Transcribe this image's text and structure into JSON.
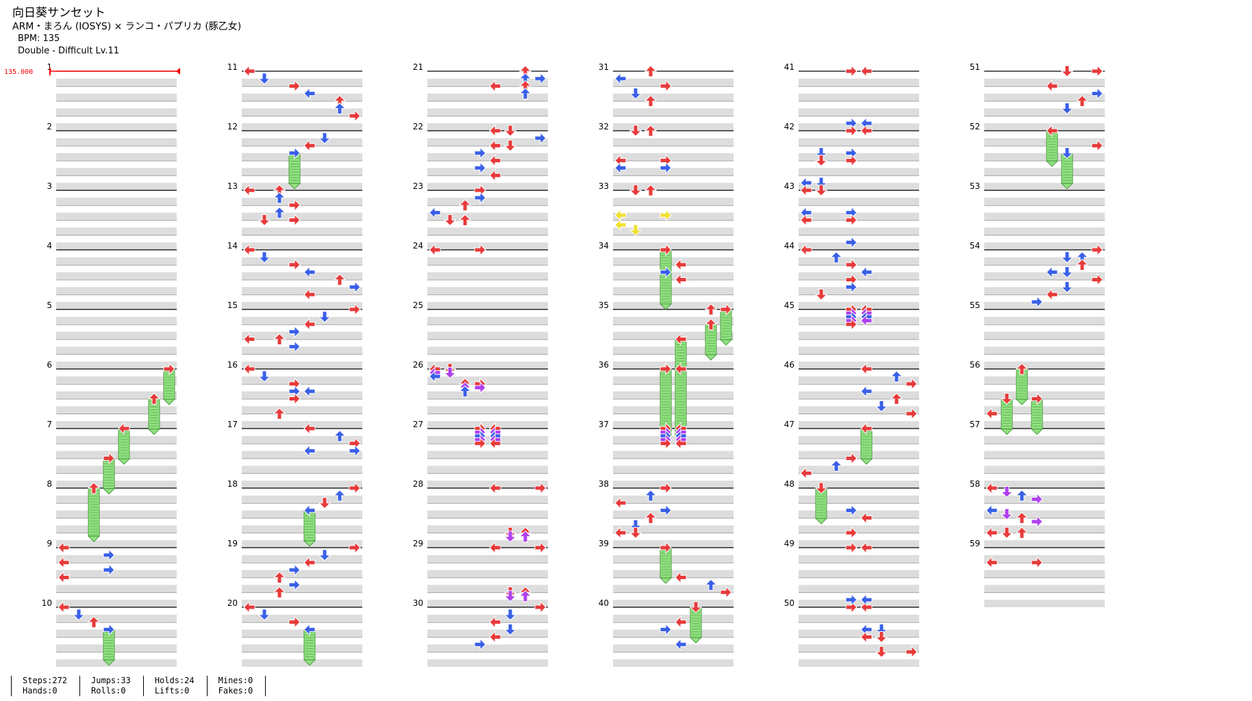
{
  "song": {
    "title": "向日葵サンセット",
    "artist": "ARM・まろん (IOSYS) × ランコ・パプリカ (豚乙女)",
    "bpm_line": "BPM: 135",
    "chart_line": "Double - Difficult  Lv.11"
  },
  "bpm_marker": "135.000",
  "measure_count": 59,
  "measures_per_column": 10,
  "colors": {
    "quarter_note": "#e83a3a",
    "eighth_note": "#3a60e8",
    "sixteenth_note": "#b040f0",
    "twelfth_note": "#f0e030",
    "hold_body": "#90e080",
    "hold_edge": "#4a9a40",
    "beat_band": "#dddddd",
    "bpm_marker": "#ff0000"
  },
  "notes": [
    {
      "m": 6,
      "b": 0,
      "l": 7,
      "h": 0.6
    },
    {
      "m": 6,
      "b": 2,
      "l": 6,
      "h": 0.6
    },
    {
      "m": 7,
      "b": 0,
      "l": 4,
      "h": 0.6
    },
    {
      "m": 7,
      "b": 2,
      "l": 3,
      "h": 0.6
    },
    {
      "m": 8,
      "b": 0,
      "l": 2,
      "h": 0.9
    },
    {
      "m": 9,
      "b": 0,
      "l": 0
    },
    {
      "m": 9,
      "b": 0.5,
      "l": 3
    },
    {
      "m": 9,
      "b": 1,
      "l": 0
    },
    {
      "m": 9,
      "b": 1.5,
      "l": 3
    },
    {
      "m": 9,
      "b": 2,
      "l": 0
    },
    {
      "m": 10,
      "b": 0,
      "l": 0
    },
    {
      "m": 10,
      "b": 0.5,
      "l": 1
    },
    {
      "m": 10,
      "b": 1,
      "l": 2
    },
    {
      "m": 10,
      "b": 1.5,
      "l": 3,
      "h": 0.6
    },
    {
      "m": 11,
      "b": 0,
      "l": 0
    },
    {
      "m": 11,
      "b": 0.5,
      "l": 1
    },
    {
      "m": 11,
      "b": 1,
      "l": 3
    },
    {
      "m": 11,
      "b": 1.5,
      "l": 4
    },
    {
      "m": 11,
      "b": 2,
      "l": 6
    },
    {
      "m": 11,
      "b": 2.5,
      "l": 6
    },
    {
      "m": 11,
      "b": 3,
      "l": 7
    },
    {
      "m": 12,
      "b": 0.5,
      "l": 5
    },
    {
      "m": 12,
      "b": 1,
      "l": 4
    },
    {
      "m": 12,
      "b": 1.5,
      "l": 3,
      "h": 0.6
    },
    {
      "m": 13,
      "b": 0,
      "l": 0
    },
    {
      "m": 13,
      "b": 0,
      "l": 2
    },
    {
      "m": 13,
      "b": 0.5,
      "l": 2
    },
    {
      "m": 13,
      "b": 1,
      "l": 3
    },
    {
      "m": 13,
      "b": 2,
      "l": 1
    },
    {
      "m": 13,
      "b": 1.5,
      "l": 2
    },
    {
      "m": 13,
      "b": 2,
      "l": 3
    },
    {
      "m": 14,
      "b": 0,
      "l": 0
    },
    {
      "m": 14,
      "b": 0.5,
      "l": 1
    },
    {
      "m": 14,
      "b": 1,
      "l": 3
    },
    {
      "m": 14,
      "b": 1.5,
      "l": 4
    },
    {
      "m": 14,
      "b": 2,
      "l": 6
    },
    {
      "m": 14,
      "b": 2.5,
      "l": 7
    },
    {
      "m": 14,
      "b": 3,
      "l": 4
    },
    {
      "m": 15,
      "b": 0,
      "l": 7
    },
    {
      "m": 15,
      "b": 0.5,
      "l": 5
    },
    {
      "m": 15,
      "b": 1,
      "l": 4
    },
    {
      "m": 15,
      "b": 1.5,
      "l": 3
    },
    {
      "m": 15,
      "b": 2,
      "l": 2
    },
    {
      "m": 15,
      "b": 2,
      "l": 0
    },
    {
      "m": 15,
      "b": 2.5,
      "l": 3
    },
    {
      "m": 16,
      "b": 0,
      "l": 0
    },
    {
      "m": 16,
      "b": 0.5,
      "l": 1
    },
    {
      "m": 16,
      "b": 1,
      "l": 3
    },
    {
      "m": 16,
      "b": 1.5,
      "l": 3
    },
    {
      "m": 16,
      "b": 1.5,
      "l": 4
    },
    {
      "m": 16,
      "b": 2,
      "l": 3
    },
    {
      "m": 16,
      "b": 3,
      "l": 2
    },
    {
      "m": 17,
      "b": 0,
      "l": 4
    },
    {
      "m": 17,
      "b": 0.5,
      "l": 6
    },
    {
      "m": 17,
      "b": 1,
      "l": 7
    },
    {
      "m": 17,
      "b": 1.5,
      "l": 4
    },
    {
      "m": 17,
      "b": 1.5,
      "l": 7
    },
    {
      "m": 18,
      "b": 0,
      "l": 7
    },
    {
      "m": 18,
      "b": 0.5,
      "l": 6
    },
    {
      "m": 18,
      "b": 1,
      "l": 5
    },
    {
      "m": 18,
      "b": 1.5,
      "l": 4,
      "h": 0.6
    },
    {
      "m": 19,
      "b": 0,
      "l": 7
    },
    {
      "m": 19,
      "b": 0.5,
      "l": 5
    },
    {
      "m": 19,
      "b": 1,
      "l": 4
    },
    {
      "m": 19,
      "b": 1.5,
      "l": 3
    },
    {
      "m": 19,
      "b": 2,
      "l": 2
    },
    {
      "m": 19,
      "b": 2.5,
      "l": 3
    },
    {
      "m": 19,
      "b": 3,
      "l": 2
    },
    {
      "m": 20,
      "b": 0,
      "l": 0
    },
    {
      "m": 20,
      "b": 0.5,
      "l": 1
    },
    {
      "m": 20,
      "b": 1,
      "l": 3
    },
    {
      "m": 20,
      "b": 1.5,
      "l": 4,
      "h": 0.6
    },
    {
      "m": 21,
      "b": 0,
      "l": 6
    },
    {
      "m": 21,
      "b": 0.5,
      "l": 6
    },
    {
      "m": 21,
      "b": 0.5,
      "l": 7
    },
    {
      "m": 21,
      "b": 1,
      "l": 4
    },
    {
      "m": 21,
      "b": 1,
      "l": 6
    },
    {
      "m": 21,
      "b": 1.5,
      "l": 6
    },
    {
      "m": 22,
      "b": 0,
      "l": 4
    },
    {
      "m": 22,
      "b": 0,
      "l": 5
    },
    {
      "m": 22,
      "b": 0.5,
      "l": 7
    },
    {
      "m": 22,
      "b": 1,
      "l": 5
    },
    {
      "m": 22,
      "b": 1,
      "l": 4
    },
    {
      "m": 22,
      "b": 1.5,
      "l": 3
    },
    {
      "m": 22,
      "b": 2,
      "l": 4
    },
    {
      "m": 22,
      "b": 2.5,
      "l": 3
    },
    {
      "m": 22,
      "b": 3,
      "l": 4
    },
    {
      "m": 23,
      "b": 0,
      "l": 3
    },
    {
      "m": 23,
      "b": 0.5,
      "l": 3
    },
    {
      "m": 23,
      "b": 1,
      "l": 2
    },
    {
      "m": 23,
      "b": 1.5,
      "l": 0
    },
    {
      "m": 23,
      "b": 2,
      "l": 1
    },
    {
      "m": 23,
      "b": 2,
      "l": 2
    },
    {
      "m": 24,
      "b": 0,
      "l": 0
    },
    {
      "m": 24,
      "b": 0,
      "l": 3
    },
    {
      "m": 26,
      "b": 0,
      "l": 0
    },
    {
      "m": 26,
      "b": 0,
      "l": 1
    },
    {
      "m": 26,
      "b": 0.25,
      "l": 0
    },
    {
      "m": 26,
      "b": 0.25,
      "l": 1
    },
    {
      "m": 26,
      "b": 0.5,
      "l": 0
    },
    {
      "m": 26,
      "b": 1,
      "l": 2
    },
    {
      "m": 26,
      "b": 1,
      "l": 3
    },
    {
      "m": 26,
      "b": 1.25,
      "l": 2
    },
    {
      "m": 26,
      "b": 1.25,
      "l": 3
    },
    {
      "m": 26,
      "b": 1.5,
      "l": 2
    },
    {
      "m": 27,
      "b": 0,
      "l": 3
    },
    {
      "m": 27,
      "b": 0,
      "l": 4
    },
    {
      "m": 27,
      "b": 0.25,
      "l": 3
    },
    {
      "m": 27,
      "b": 0.25,
      "l": 4
    },
    {
      "m": 27,
      "b": 0.5,
      "l": 3
    },
    {
      "m": 27,
      "b": 0.5,
      "l": 4
    },
    {
      "m": 27,
      "b": 0.75,
      "l": 3
    },
    {
      "m": 27,
      "b": 0.75,
      "l": 4
    },
    {
      "m": 27,
      "b": 1,
      "l": 3
    },
    {
      "m": 27,
      "b": 1,
      "l": 4
    },
    {
      "m": 28,
      "b": 0,
      "l": 4
    },
    {
      "m": 28,
      "b": 0,
      "l": 7
    },
    {
      "m": 29,
      "b": -1,
      "l": 5
    },
    {
      "m": 29,
      "b": -1,
      "l": 6
    },
    {
      "m": 29,
      "b": -0.75,
      "l": 5
    },
    {
      "m": 29,
      "b": -0.75,
      "l": 6
    },
    {
      "m": 29,
      "b": 0,
      "l": 4
    },
    {
      "m": 29,
      "b": 0,
      "l": 7
    },
    {
      "m": 30,
      "b": -1,
      "l": 5
    },
    {
      "m": 30,
      "b": -1,
      "l": 6
    },
    {
      "m": 30,
      "b": -0.75,
      "l": 5
    },
    {
      "m": 30,
      "b": -0.75,
      "l": 6
    },
    {
      "m": 30,
      "b": 0,
      "l": 7
    },
    {
      "m": 30,
      "b": 0.5,
      "l": 5
    },
    {
      "m": 30,
      "b": 1,
      "l": 4
    },
    {
      "m": 30,
      "b": 1.5,
      "l": 5
    },
    {
      "m": 30,
      "b": 2,
      "l": 4
    },
    {
      "m": 30,
      "b": 2.5,
      "l": 3
    },
    {
      "m": 31,
      "b": 0,
      "l": 2
    },
    {
      "m": 31,
      "b": 0.5,
      "l": 0
    },
    {
      "m": 31,
      "b": 1,
      "l": 3
    },
    {
      "m": 31,
      "b": 1.5,
      "l": 1
    },
    {
      "m": 31,
      "b": 2,
      "l": 2
    },
    {
      "m": 32,
      "b": 0,
      "l": 1
    },
    {
      "m": 32,
      "b": 0,
      "l": 2
    },
    {
      "m": 32,
      "b": 2,
      "l": 0
    },
    {
      "m": 32,
      "b": 2,
      "l": 3
    },
    {
      "m": 32,
      "b": 2.5,
      "l": 0
    },
    {
      "m": 32,
      "b": 2.5,
      "l": 3
    },
    {
      "m": 33,
      "b": 0,
      "l": 1
    },
    {
      "m": 33,
      "b": 0,
      "l": 2
    },
    {
      "m": 33,
      "b": 1.67,
      "l": 0
    },
    {
      "m": 33,
      "b": 1.67,
      "l": 3
    },
    {
      "m": 33,
      "b": 2.33,
      "l": 0
    },
    {
      "m": 33,
      "b": 2.67,
      "l": 1
    },
    {
      "m": 34,
      "b": 0,
      "l": 3,
      "h": 1.0
    },
    {
      "m": 34,
      "b": 1.5,
      "l": 3
    },
    {
      "m": 34,
      "b": 2,
      "l": 4
    },
    {
      "m": 34,
      "b": 1,
      "l": 4
    },
    {
      "m": 35,
      "b": 0,
      "l": 7,
      "h": 0.6
    },
    {
      "m": 35,
      "b": 0,
      "l": 6
    },
    {
      "m": 35,
      "b": 1,
      "l": 6,
      "h": 0.6
    },
    {
      "m": 35,
      "b": 2,
      "l": 4,
      "h": 0.6
    },
    {
      "m": 36,
      "b": 0,
      "l": 3,
      "h": 1.2
    },
    {
      "m": 36,
      "b": 0,
      "l": 4,
      "h": 1.2
    },
    {
      "m": 37,
      "b": 0,
      "l": 3
    },
    {
      "m": 37,
      "b": 0,
      "l": 4
    },
    {
      "m": 37,
      "b": 0.25,
      "l": 3
    },
    {
      "m": 37,
      "b": 0.25,
      "l": 4
    },
    {
      "m": 37,
      "b": 0.5,
      "l": 3
    },
    {
      "m": 37,
      "b": 0.5,
      "l": 4
    },
    {
      "m": 37,
      "b": 0.75,
      "l": 3
    },
    {
      "m": 37,
      "b": 0.75,
      "l": 4
    },
    {
      "m": 37,
      "b": 1,
      "l": 3
    },
    {
      "m": 37,
      "b": 1,
      "l": 4
    },
    {
      "m": 38,
      "b": 0,
      "l": 3
    },
    {
      "m": 38,
      "b": 0.5,
      "l": 2
    },
    {
      "m": 38,
      "b": 1,
      "l": 0
    },
    {
      "m": 38,
      "b": 1.5,
      "l": 3
    },
    {
      "m": 38,
      "b": 2,
      "l": 2
    },
    {
      "m": 38,
      "b": 2.5,
      "l": 1
    },
    {
      "m": 38,
      "b": 3,
      "l": 0
    },
    {
      "m": 38,
      "b": 3,
      "l": 1
    },
    {
      "m": 39,
      "b": 0,
      "l": 3,
      "h": 0.6
    },
    {
      "m": 39,
      "b": 2,
      "l": 4
    },
    {
      "m": 39,
      "b": 2.5,
      "l": 6
    },
    {
      "m": 39,
      "b": 3,
      "l": 7
    },
    {
      "m": 40,
      "b": 0,
      "l": 5,
      "h": 0.6
    },
    {
      "m": 40,
      "b": 1,
      "l": 4
    },
    {
      "m": 40,
      "b": 1.5,
      "l": 3
    },
    {
      "m": 40,
      "b": 2.5,
      "l": 4
    },
    {
      "m": 41,
      "b": 0,
      "l": 3
    },
    {
      "m": 41,
      "b": 0,
      "l": 4
    },
    {
      "m": 42,
      "b": -0.5,
      "l": 3
    },
    {
      "m": 42,
      "b": -0.5,
      "l": 4
    },
    {
      "m": 42,
      "b": 0,
      "l": 3
    },
    {
      "m": 42,
      "b": 0,
      "l": 4
    },
    {
      "m": 42,
      "b": 1.5,
      "l": 1
    },
    {
      "m": 42,
      "b": 1.5,
      "l": 3
    },
    {
      "m": 42,
      "b": 2,
      "l": 1
    },
    {
      "m": 42,
      "b": 2,
      "l": 3
    },
    {
      "m": 43,
      "b": -0.5,
      "l": 0
    },
    {
      "m": 43,
      "b": -0.5,
      "l": 1
    },
    {
      "m": 43,
      "b": 0,
      "l": 0
    },
    {
      "m": 43,
      "b": 0,
      "l": 1
    },
    {
      "m": 43,
      "b": 1.5,
      "l": 0
    },
    {
      "m": 43,
      "b": 1.5,
      "l": 3
    },
    {
      "m": 43,
      "b": 2,
      "l": 0
    },
    {
      "m": 43,
      "b": 2,
      "l": 3
    },
    {
      "m": 44,
      "b": -0.5,
      "l": 3
    },
    {
      "m": 44,
      "b": 0,
      "l": 0
    },
    {
      "m": 44,
      "b": 0.5,
      "l": 2
    },
    {
      "m": 44,
      "b": 1,
      "l": 3
    },
    {
      "m": 44,
      "b": 1.5,
      "l": 4
    },
    {
      "m": 44,
      "b": 2,
      "l": 3
    },
    {
      "m": 44,
      "b": 3,
      "l": 1
    },
    {
      "m": 44,
      "b": 2.5,
      "l": 3
    },
    {
      "m": 45,
      "b": 0,
      "l": 3
    },
    {
      "m": 45,
      "b": 0,
      "l": 4
    },
    {
      "m": 45,
      "b": 0.25,
      "l": 3
    },
    {
      "m": 45,
      "b": 0.25,
      "l": 4
    },
    {
      "m": 45,
      "b": 0.5,
      "l": 3
    },
    {
      "m": 45,
      "b": 0.5,
      "l": 4
    },
    {
      "m": 45,
      "b": 0.75,
      "l": 3
    },
    {
      "m": 45,
      "b": 0.75,
      "l": 4
    },
    {
      "m": 45,
      "b": 1,
      "l": 3
    },
    {
      "m": 46,
      "b": 0,
      "l": 4
    },
    {
      "m": 46,
      "b": 0.5,
      "l": 6
    },
    {
      "m": 46,
      "b": 1,
      "l": 7
    },
    {
      "m": 46,
      "b": 1.5,
      "l": 4
    },
    {
      "m": 46,
      "b": 2,
      "l": 6
    },
    {
      "m": 46,
      "b": 2.5,
      "l": 5
    },
    {
      "m": 46,
      "b": 3,
      "l": 7
    },
    {
      "m": 47,
      "b": 0,
      "l": 4,
      "h": 0.6
    },
    {
      "m": 47,
      "b": 2,
      "l": 3
    },
    {
      "m": 47,
      "b": 2.5,
      "l": 2
    },
    {
      "m": 47,
      "b": 3,
      "l": 0
    },
    {
      "m": 48,
      "b": 0,
      "l": 1,
      "h": 0.6
    },
    {
      "m": 48,
      "b": 1.5,
      "l": 3
    },
    {
      "m": 48,
      "b": 2,
      "l": 4
    },
    {
      "m": 48,
      "b": 3,
      "l": 3
    },
    {
      "m": 49,
      "b": 0,
      "l": 3
    },
    {
      "m": 49,
      "b": 0,
      "l": 4
    },
    {
      "m": 50,
      "b": 0,
      "l": 3
    },
    {
      "m": 50,
      "b": 0,
      "l": 4
    },
    {
      "m": 50,
      "b": -0.5,
      "l": 3
    },
    {
      "m": 50,
      "b": -0.5,
      "l": 4
    },
    {
      "m": 50,
      "b": 1.5,
      "l": 4
    },
    {
      "m": 50,
      "b": 1.5,
      "l": 5
    },
    {
      "m": 50,
      "b": 2,
      "l": 4
    },
    {
      "m": 50,
      "b": 2,
      "l": 5
    },
    {
      "m": 50,
      "b": 3,
      "l": 5
    },
    {
      "m": 50,
      "b": 3,
      "l": 7
    },
    {
      "m": 51,
      "b": 0,
      "l": 5
    },
    {
      "m": 51,
      "b": 0,
      "l": 7
    },
    {
      "m": 51,
      "b": 1,
      "l": 4
    },
    {
      "m": 51,
      "b": 1.5,
      "l": 7
    },
    {
      "m": 51,
      "b": 2,
      "l": 6
    },
    {
      "m": 51,
      "b": 2.5,
      "l": 5
    },
    {
      "m": 52,
      "b": 0,
      "l": 4,
      "h": 0.6
    },
    {
      "m": 52,
      "b": 1,
      "l": 7
    },
    {
      "m": 52,
      "b": 1.5,
      "l": 5,
      "h": 0.6
    },
    {
      "m": 54,
      "b": 0,
      "l": 7
    },
    {
      "m": 54,
      "b": 0.5,
      "l": 5
    },
    {
      "m": 54,
      "b": 0.5,
      "l": 6
    },
    {
      "m": 54,
      "b": 1,
      "l": 6
    },
    {
      "m": 54,
      "b": 1.5,
      "l": 4
    },
    {
      "m": 54,
      "b": 1.5,
      "l": 5
    },
    {
      "m": 54,
      "b": 2,
      "l": 7
    },
    {
      "m": 54,
      "b": 2.5,
      "l": 5
    },
    {
      "m": 54,
      "b": 3,
      "l": 4
    },
    {
      "m": 54,
      "b": 3.5,
      "l": 3
    },
    {
      "m": 56,
      "b": 0,
      "l": 2,
      "h": 0.6
    },
    {
      "m": 56,
      "b": 2,
      "l": 1,
      "h": 0.6
    },
    {
      "m": 56,
      "b": 2,
      "l": 3,
      "h": 0.6
    },
    {
      "m": 56,
      "b": 3,
      "l": 0
    },
    {
      "m": 58,
      "b": 0,
      "l": 0
    },
    {
      "m": 58,
      "b": 0.25,
      "l": 1
    },
    {
      "m": 58,
      "b": 0.5,
      "l": 2
    },
    {
      "m": 58,
      "b": 0.75,
      "l": 3
    },
    {
      "m": 58,
      "b": 1.5,
      "l": 0
    },
    {
      "m": 58,
      "b": 1.75,
      "l": 1
    },
    {
      "m": 58,
      "b": 2,
      "l": 2
    },
    {
      "m": 58,
      "b": 2.25,
      "l": 3
    },
    {
      "m": 58,
      "b": 3,
      "l": 0
    },
    {
      "m": 58,
      "b": 3,
      "l": 1
    },
    {
      "m": 58,
      "b": 3,
      "l": 2
    },
    {
      "m": 59,
      "b": 1,
      "l": 0
    },
    {
      "m": 59,
      "b": 1,
      "l": 3
    }
  ],
  "stats": [
    {
      "label_a": "Steps:272",
      "label_b": "Hands:0"
    },
    {
      "label_a": "Jumps:33",
      "label_b": "Rolls:0"
    },
    {
      "label_a": "Holds:24",
      "label_b": "Lifts:0"
    },
    {
      "label_a": "Mines:0",
      "label_b": "Fakes:0"
    }
  ]
}
